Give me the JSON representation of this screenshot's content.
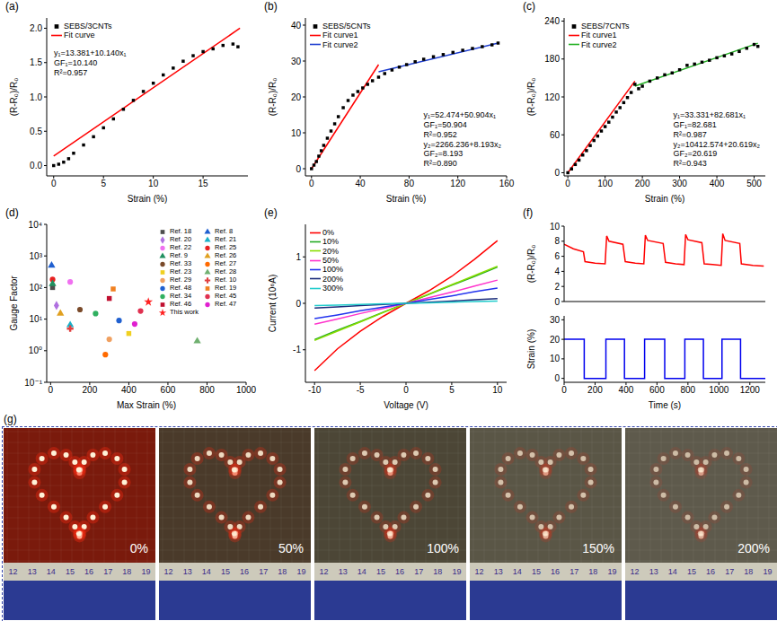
{
  "chart_data": [
    {
      "label": "(a)",
      "type": "scatter",
      "x_label": "Strain (%)",
      "y_label": "(R-R₀)/R₀",
      "xlim": [
        -0.7,
        19.5
      ],
      "xticks": [
        0,
        5,
        10,
        15
      ],
      "ylim": [
        -0.15,
        2.15
      ],
      "yticks": [
        {
          "value": 0,
          "label": "0.0"
        },
        {
          "value": 0.5,
          "label": "0.5"
        },
        {
          "value": 1,
          "label": "1.0"
        },
        {
          "value": 1.5,
          "label": "1.5"
        },
        {
          "value": 2,
          "label": "2.0"
        }
      ],
      "legend": "upper left",
      "series": [
        {
          "name": "SEBS/3CNTs",
          "type": "scatter",
          "marker": "square",
          "color": "#000000",
          "x": [
            0,
            0.5,
            1,
            1.5,
            2,
            3,
            4,
            5,
            6,
            7,
            8,
            9,
            10,
            11,
            12,
            13,
            14,
            15,
            16,
            17,
            18,
            18.5
          ],
          "values": [
            0,
            0.02,
            0.05,
            0.1,
            0.18,
            0.3,
            0.42,
            0.55,
            0.68,
            0.82,
            0.95,
            1.08,
            1.2,
            1.32,
            1.42,
            1.52,
            1.6,
            1.66,
            1.7,
            1.75,
            1.77,
            1.73
          ]
        },
        {
          "name": "Fit curve",
          "type": "line",
          "color": "#ff0000",
          "x": [
            0,
            18.7
          ],
          "values": [
            0.14,
            2.0
          ]
        }
      ],
      "annotations": [
        "y₁=13.381+10.140x₁",
        "GF₁=10.140",
        "R²=0.957"
      ]
    },
    {
      "label": "(b)",
      "type": "scatter",
      "x_label": "Strain (%)",
      "y_label": "(R-R₀)/R₀",
      "xlim": [
        -5,
        160
      ],
      "xticks": [
        0,
        40,
        80,
        120,
        160
      ],
      "ylim": [
        -2,
        42
      ],
      "yticks": [
        0,
        10,
        20,
        30,
        40
      ],
      "legend": "upper left",
      "series": [
        {
          "name": "SEBS/5CNTs",
          "type": "scatter",
          "marker": "square",
          "color": "#000000",
          "x": [
            0,
            2,
            4,
            6,
            8,
            10,
            13,
            16,
            19,
            22,
            26,
            30,
            34,
            38,
            42,
            46,
            50,
            55,
            60,
            66,
            72,
            78,
            85,
            92,
            100,
            108,
            116,
            124,
            132,
            140,
            148,
            153
          ],
          "values": [
            0,
            1,
            2,
            3.5,
            5,
            6.5,
            8.5,
            10.5,
            12.5,
            14.5,
            17,
            19,
            20.5,
            21.5,
            22.5,
            23.5,
            24.5,
            25.5,
            26.5,
            27.5,
            28.3,
            29,
            29.8,
            30.5,
            31.2,
            31.8,
            32.4,
            33,
            33.5,
            34,
            34.5,
            35
          ]
        },
        {
          "name": "Fit curve1",
          "type": "line",
          "color": "#ff0000",
          "x": [
            0,
            55
          ],
          "values": [
            0,
            29
          ]
        },
        {
          "name": "Fit curve2",
          "type": "line",
          "color": "#1f3fd0",
          "x": [
            55,
            153
          ],
          "values": [
            27,
            35
          ]
        }
      ],
      "annotations": [
        "y₁=52.474+50.904x₁",
        "GF₁=50.904",
        "R²=0.952",
        "y₂=2266.236+8.193x₂",
        "GF₂=8.193",
        "R²=0.890"
      ]
    },
    {
      "label": "(c)",
      "type": "scatter",
      "x_label": "Strain (%)",
      "y_label": "(R-R₀)/R₀",
      "xlim": [
        -10,
        530
      ],
      "xticks": [
        0,
        100,
        200,
        300,
        400,
        500
      ],
      "ylim": [
        -5,
        245
      ],
      "yticks": [
        0,
        60,
        120,
        180,
        240
      ],
      "legend": "upper left",
      "series": [
        {
          "name": "SEBS/7CNTs",
          "type": "scatter",
          "marker": "square",
          "color": "#000000",
          "x": [
            0,
            10,
            20,
            30,
            40,
            50,
            60,
            70,
            80,
            90,
            100,
            110,
            120,
            130,
            140,
            150,
            160,
            170,
            180,
            190,
            200,
            220,
            240,
            260,
            280,
            300,
            320,
            340,
            360,
            380,
            400,
            420,
            440,
            460,
            480,
            500,
            510
          ],
          "values": [
            0,
            6,
            13,
            20,
            28,
            35,
            43,
            51,
            58,
            66,
            73,
            80,
            88,
            96,
            103,
            111,
            119,
            127,
            140,
            133,
            137,
            145,
            150,
            155,
            158,
            163,
            170,
            172,
            175,
            178,
            182,
            185,
            188,
            192,
            197,
            203,
            200
          ]
        },
        {
          "name": "Fit curve1",
          "type": "line",
          "color": "#ff0000",
          "x": [
            0,
            180
          ],
          "values": [
            0,
            145
          ]
        },
        {
          "name": "Fit curve2",
          "type": "line",
          "color": "#22b022",
          "x": [
            180,
            510
          ],
          "values": [
            137,
            205
          ]
        }
      ],
      "annotations": [
        "y₁=33.331+82.681x₁",
        "GF₁=82.681",
        "R²=0.987",
        "y₂=10412.574+20.619x₂",
        "GF₂=20.619",
        "R²=0.943"
      ]
    },
    {
      "label": "(d)",
      "type": "scatter",
      "x_label": "Max Strain (%)",
      "y_label": "Gauge Factor",
      "log": "y",
      "xlim": [
        -20,
        1000
      ],
      "xticks": [
        0,
        200,
        400,
        600,
        800,
        1000
      ],
      "ylim": [
        0.1,
        10000
      ],
      "yticks": [
        {
          "value": 0.1,
          "label": "10⁻¹"
        },
        {
          "value": 1,
          "label": "10⁰"
        },
        {
          "value": 10,
          "label": "10¹"
        },
        {
          "value": 100,
          "label": "10²"
        },
        {
          "value": 1000,
          "label": "10³"
        },
        {
          "value": 10000,
          "label": "10⁴"
        }
      ],
      "legend": "upper right",
      "series": [
        {
          "name": "Ref. 18",
          "type": "scatter",
          "marker": "square",
          "color": "#4d4d4d",
          "x": [
            10
          ],
          "values": [
            100
          ]
        },
        {
          "name": "Ref. 8",
          "type": "scatter",
          "marker": "triangle",
          "color": "#1f5fd0",
          "x": [
            5
          ],
          "values": [
            500
          ]
        },
        {
          "name": "Ref. 20",
          "type": "scatter",
          "marker": "diamond",
          "color": "#b070e0",
          "x": [
            30
          ],
          "values": [
            27
          ]
        },
        {
          "name": "Ref. 21",
          "type": "scatter",
          "marker": "triangle",
          "color": "#1ab0c8",
          "x": [
            100
          ],
          "values": [
            6.5
          ]
        },
        {
          "name": "Ref. 22",
          "type": "scatter",
          "marker": "circle",
          "color": "#f070f0",
          "x": [
            100
          ],
          "values": [
            150
          ]
        },
        {
          "name": "Ref. 25",
          "type": "scatter",
          "marker": "circle",
          "color": "#e82020",
          "x": [
            10
          ],
          "values": [
            180
          ]
        },
        {
          "name": "Ref. 9",
          "type": "scatter",
          "marker": "triangle",
          "color": "#209060",
          "x": [
            10
          ],
          "values": [
            130
          ]
        },
        {
          "name": "Ref. 26",
          "type": "scatter",
          "marker": "triangle",
          "color": "#e0a020",
          "x": [
            50
          ],
          "values": [
            15
          ]
        },
        {
          "name": "Ref. 33",
          "type": "scatter",
          "marker": "circle",
          "color": "#7a4a2a",
          "x": [
            150
          ],
          "values": [
            20
          ]
        },
        {
          "name": "Ref. 27",
          "type": "scatter",
          "marker": "circle",
          "color": "#ff6a00",
          "x": [
            280
          ],
          "values": [
            0.75
          ]
        },
        {
          "name": "Ref. 23",
          "type": "scatter",
          "marker": "square",
          "color": "#f0d020",
          "x": [
            400
          ],
          "values": [
            3.5
          ]
        },
        {
          "name": "Ref. 28",
          "type": "scatter",
          "marker": "triangle",
          "color": "#70b070",
          "x": [
            750
          ],
          "values": [
            2
          ]
        },
        {
          "name": "Ref. 29",
          "type": "scatter",
          "marker": "circle",
          "color": "#f0a060",
          "x": [
            300
          ],
          "values": [
            2.3
          ]
        },
        {
          "name": "Ref. 10",
          "type": "scatter",
          "marker": "cross",
          "color": "#e04040",
          "x": [
            100
          ],
          "values": [
            5
          ]
        },
        {
          "name": "Ref. 48",
          "type": "scatter",
          "marker": "circle",
          "color": "#2060d0",
          "x": [
            350
          ],
          "values": [
            9
          ]
        },
        {
          "name": "Ref. 19",
          "type": "scatter",
          "marker": "square",
          "color": "#f08020",
          "x": [
            320
          ],
          "values": [
            90
          ]
        },
        {
          "name": "Ref. 34",
          "type": "scatter",
          "marker": "circle",
          "color": "#30b060",
          "x": [
            230
          ],
          "values": [
            15
          ]
        },
        {
          "name": "Ref. 45",
          "type": "scatter",
          "marker": "circle",
          "color": "#e03050",
          "x": [
            460
          ],
          "values": [
            18
          ]
        },
        {
          "name": "Ref. 46",
          "type": "scatter",
          "marker": "square",
          "color": "#c01030",
          "x": [
            300
          ],
          "values": [
            45
          ]
        },
        {
          "name": "Ref. 47",
          "type": "scatter",
          "marker": "circle",
          "color": "#e020d0",
          "x": [
            430
          ],
          "values": [
            7
          ]
        },
        {
          "name": "This work",
          "type": "scatter",
          "marker": "star",
          "color": "#ff2020",
          "x": [
            500
          ],
          "values": [
            35
          ]
        }
      ]
    },
    {
      "label": "(e)",
      "type": "line",
      "x_label": "Voltage (V)",
      "y_label": "Current (10⁶A)",
      "xlim": [
        -11,
        11
      ],
      "xticks": [
        -10,
        -5,
        0,
        5,
        10
      ],
      "ylim": [
        -1.7,
        1.7
      ],
      "yticks": [
        -1,
        0,
        1
      ],
      "legend": "upper left",
      "series": [
        {
          "name": "0%",
          "type": "line",
          "color": "#ff0000",
          "x": [
            -10,
            -7.5,
            -5,
            -2.5,
            0,
            2.5,
            5,
            7.5,
            10
          ],
          "values": [
            -1.45,
            -0.98,
            -0.6,
            -0.28,
            0,
            0.27,
            0.58,
            0.95,
            1.35
          ]
        },
        {
          "name": "10%",
          "type": "line",
          "color": "#22aa22",
          "x": [
            -10,
            -7.5,
            -5,
            -2.5,
            0,
            2.5,
            5,
            7.5,
            10
          ],
          "values": [
            -0.78,
            -0.58,
            -0.39,
            -0.19,
            0,
            0.19,
            0.39,
            0.58,
            0.78
          ]
        },
        {
          "name": "20%",
          "type": "line",
          "color": "#88dd00",
          "x": [
            -10,
            -7.5,
            -5,
            -2.5,
            0,
            2.5,
            5,
            7.5,
            10
          ],
          "values": [
            -0.8,
            -0.6,
            -0.4,
            -0.2,
            0,
            0.2,
            0.4,
            0.6,
            0.8
          ]
        },
        {
          "name": "50%",
          "type": "line",
          "color": "#ff33cc",
          "x": [
            -10,
            -7.5,
            -5,
            -2.5,
            0,
            2.5,
            5,
            7.5,
            10
          ],
          "values": [
            -0.45,
            -0.34,
            -0.22,
            -0.11,
            0,
            0.12,
            0.24,
            0.37,
            0.5
          ]
        },
        {
          "name": "100%",
          "type": "line",
          "color": "#2233ee",
          "x": [
            -10,
            -7.5,
            -5,
            -2.5,
            0,
            2.5,
            5,
            7.5,
            10
          ],
          "values": [
            -0.33,
            -0.25,
            -0.16,
            -0.08,
            0,
            0.08,
            0.16,
            0.25,
            0.33
          ]
        },
        {
          "name": "200%",
          "type": "line",
          "color": "#1a2a7a",
          "x": [
            -10,
            -7.5,
            -5,
            -2.5,
            0,
            2.5,
            5,
            7.5,
            10
          ],
          "values": [
            -0.1,
            -0.075,
            -0.05,
            -0.025,
            0,
            0.025,
            0.05,
            0.075,
            0.1
          ]
        },
        {
          "name": "300%",
          "type": "line",
          "color": "#22cccc",
          "x": [
            -10,
            -7.5,
            -5,
            -2.5,
            0,
            2.5,
            5,
            7.5,
            10
          ],
          "values": [
            -0.05,
            -0.04,
            -0.025,
            -0.012,
            0,
            0.012,
            0.025,
            0.04,
            0.05
          ]
        }
      ]
    },
    {
      "label": "(f)",
      "type": "line",
      "y_label": "(R-R₀)/R₀",
      "xlim": [
        0,
        1300
      ],
      "xticks": [
        0,
        200,
        400,
        600,
        800,
        1000,
        1200
      ],
      "tick_labels": "y",
      "ylim": [
        0,
        10
      ],
      "yticks": [
        0,
        2,
        4,
        6,
        8,
        10
      ],
      "series": [
        {
          "type": "line",
          "color": "#ff0000",
          "x": [
            0,
            60,
            125,
            135,
            200,
            265,
            275,
            290,
            380,
            395,
            460,
            515,
            525,
            540,
            640,
            655,
            720,
            775,
            785,
            800,
            890,
            905,
            960,
            1015,
            1025,
            1040,
            1135,
            1145,
            1220,
            1290
          ],
          "values": [
            7.6,
            7.0,
            6.6,
            5.3,
            5.1,
            5.0,
            8.7,
            8.0,
            7.6,
            5.3,
            5.1,
            5.0,
            8.8,
            8.1,
            7.7,
            5.2,
            5.0,
            4.9,
            8.9,
            8.2,
            7.8,
            5.0,
            4.9,
            4.8,
            9.0,
            8.1,
            7.7,
            5.0,
            4.8,
            4.7
          ]
        }
      ]
    },
    {
      "type": "line",
      "x_label": "Time (s)",
      "y_label": "Strain (%)",
      "xlim": [
        0,
        1300
      ],
      "xticks": [
        0,
        200,
        400,
        600,
        800,
        1000,
        1200
      ],
      "ylim": [
        -2,
        32
      ],
      "yticks": [
        0,
        10,
        20,
        30
      ],
      "series": [
        {
          "type": "line",
          "color": "#0000ee",
          "x": [
            0,
            130,
            130,
            270,
            270,
            390,
            390,
            520,
            520,
            650,
            650,
            780,
            780,
            900,
            900,
            1020,
            1020,
            1140,
            1140,
            1300
          ],
          "values": [
            20,
            20,
            0,
            0,
            20,
            20,
            0,
            0,
            20,
            20,
            0,
            0,
            20,
            20,
            0,
            0,
            20,
            20,
            0,
            0
          ]
        }
      ]
    }
  ],
  "photo_panel": {
    "label": "(g)",
    "frames": [
      "0%",
      "50%",
      "100%",
      "150%",
      "200%"
    ],
    "ruler": [
      12,
      13,
      14,
      15,
      16,
      17,
      18,
      19
    ]
  }
}
